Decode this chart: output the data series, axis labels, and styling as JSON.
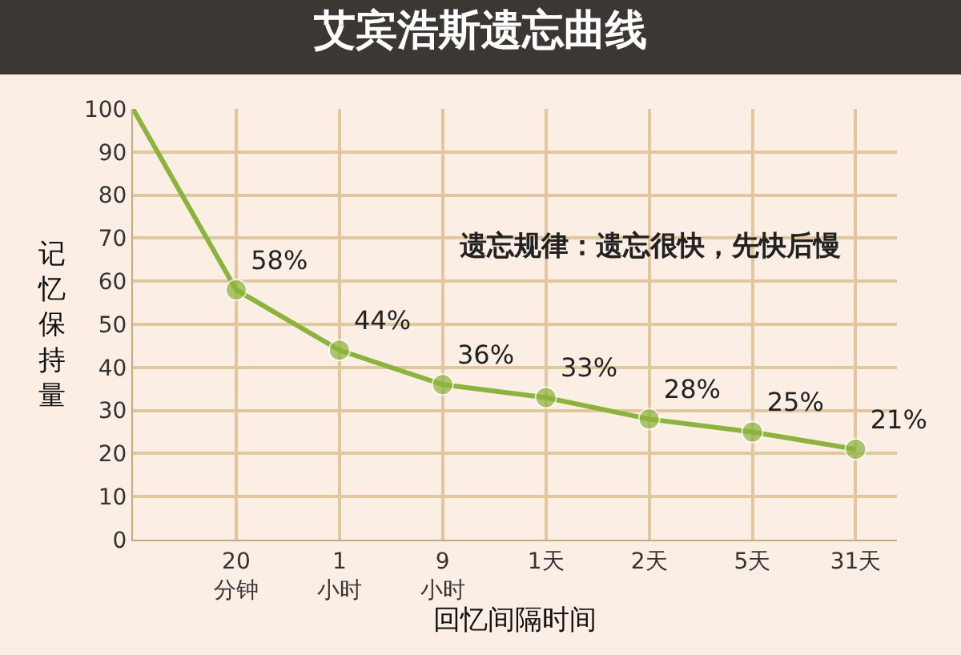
{
  "chart_data": {
    "type": "line",
    "title": "艾宾浩斯遗忘曲线",
    "xlabel": "回忆间隔时间",
    "ylabel": "记忆保持量",
    "categories": [
      null,
      "20\n分钟",
      "1\n小时",
      "9\n小时",
      "1天",
      "2天",
      "5天",
      "31天"
    ],
    "series": [
      {
        "color": "#8cb33a",
        "values": [
          100,
          58,
          44,
          36,
          33,
          28,
          25,
          21
        ],
        "value_labels": [
          null,
          "58%",
          "44%",
          "36%",
          "33%",
          "28%",
          "25%",
          "21%"
        ]
      }
    ],
    "ylim": [
      0,
      100
    ],
    "yticks": [
      0,
      10,
      20,
      30,
      40,
      50,
      60,
      70,
      80,
      90,
      100
    ],
    "annotations": [
      "遗忘规律：遗忘很快，先快后慢"
    ],
    "grid": true,
    "marker": "circle"
  }
}
